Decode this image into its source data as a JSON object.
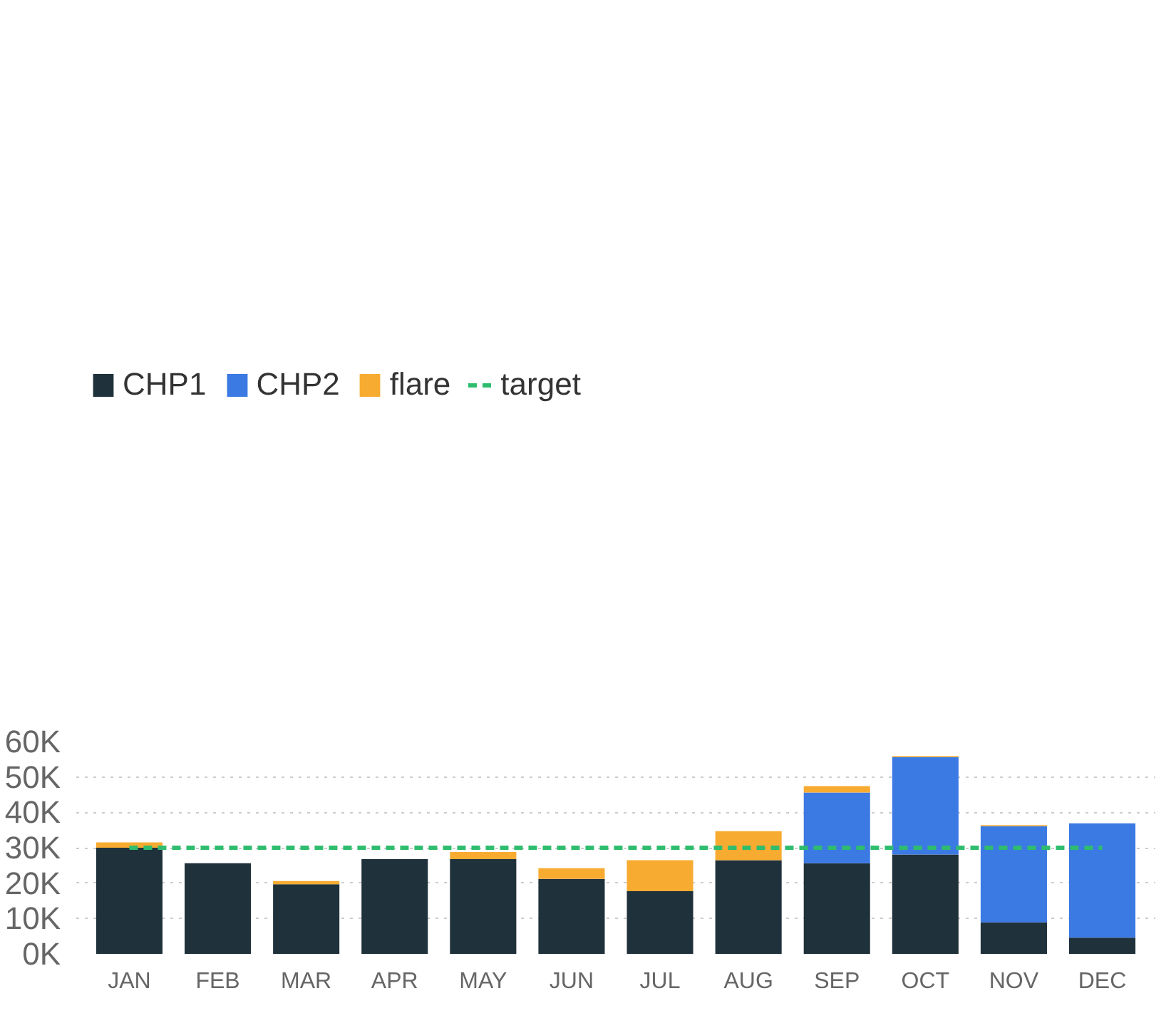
{
  "chart_data": {
    "type": "bar",
    "stacked": true,
    "categories": [
      "JAN",
      "FEB",
      "MAR",
      "APR",
      "MAY",
      "JUN",
      "JUL",
      "AUG",
      "SEP",
      "OCT",
      "NOV",
      "DEC"
    ],
    "series": [
      {
        "name": "CHP1",
        "color": "#1f313b",
        "values": [
          30000,
          25600,
          19700,
          26800,
          26800,
          21200,
          17700,
          26500,
          25600,
          28100,
          8900,
          4600
        ]
      },
      {
        "name": "CHP2",
        "color": "#3b79e3",
        "values": [
          0,
          0,
          0,
          0,
          0,
          0,
          0,
          0,
          20000,
          27500,
          27200,
          32300
        ]
      },
      {
        "name": "flare",
        "color": "#f8ab31",
        "values": [
          1500,
          0,
          900,
          0,
          2000,
          3000,
          8800,
          8200,
          1800,
          300,
          300,
          0
        ]
      },
      {
        "name": "target",
        "type": "line",
        "line_style": "dashed",
        "color": "#2ebd6e",
        "values": [
          30000,
          30000,
          30000,
          30000,
          30000,
          30000,
          30000,
          30000,
          30000,
          30000,
          30000,
          30000
        ]
      }
    ],
    "ylim": [
      0,
      60000
    ],
    "yticks": [
      {
        "value": 0,
        "label": "0K"
      },
      {
        "value": 10000,
        "label": "10K"
      },
      {
        "value": 20000,
        "label": "20K"
      },
      {
        "value": 30000,
        "label": "30K"
      },
      {
        "value": 40000,
        "label": "40K"
      },
      {
        "value": 50000,
        "label": "50K"
      },
      {
        "value": 60000,
        "label": "60K"
      }
    ],
    "grid": "y",
    "legend": "top left"
  }
}
